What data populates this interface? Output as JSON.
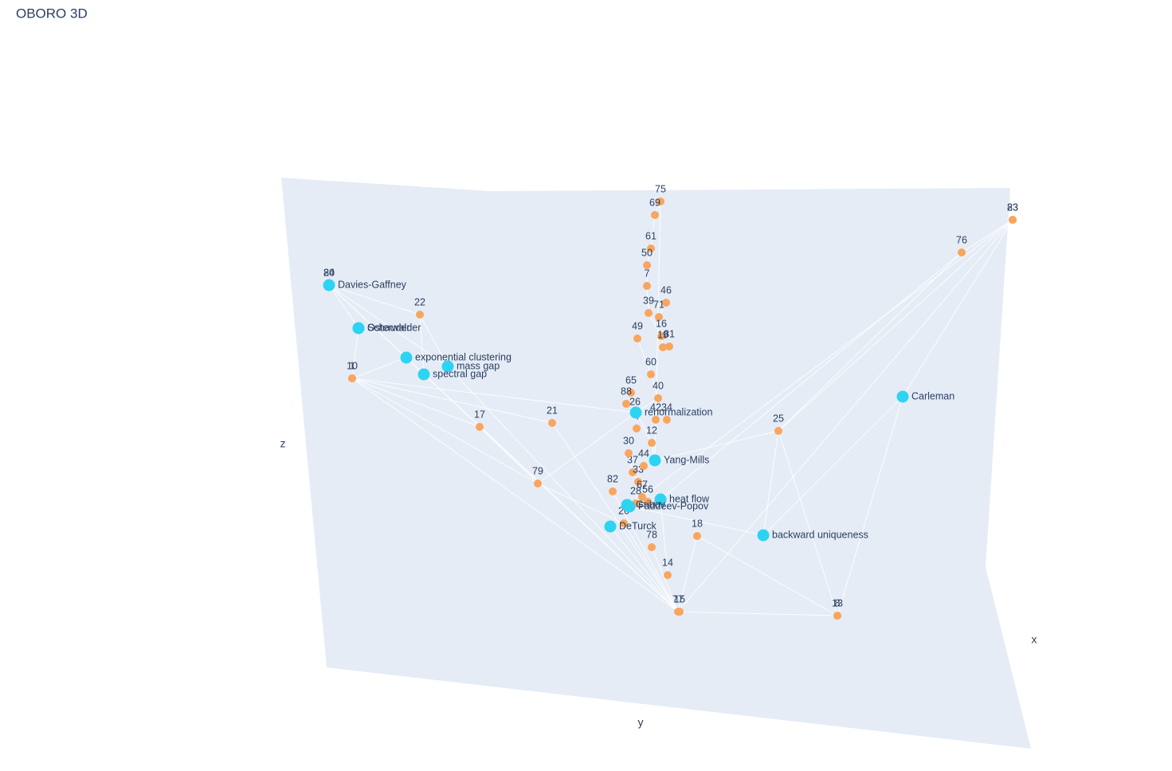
{
  "title": "OBORO 3D",
  "axes": {
    "x": "x",
    "y": "y",
    "z": "z"
  },
  "nodes": [
    {
      "label": "Davies-Gaffney"
    },
    {
      "label": "Osterwalder"
    },
    {
      "label": "Schauder"
    },
    {
      "label": "exponential clustering"
    },
    {
      "label": "mass gap"
    },
    {
      "label": "spectral gap"
    },
    {
      "label": "renormalization"
    },
    {
      "label": "Yang-Mills"
    },
    {
      "label": "heat flow"
    },
    {
      "label": "Faddeev-Popov"
    },
    {
      "label": "Gribov"
    },
    {
      "label": "DeTurck"
    },
    {
      "label": "backward uniqueness"
    },
    {
      "label": "Carleman"
    },
    {
      "label": "75"
    },
    {
      "label": "69"
    },
    {
      "label": "61"
    },
    {
      "label": "50"
    },
    {
      "label": "7"
    },
    {
      "label": "46"
    },
    {
      "label": "39"
    },
    {
      "label": "71"
    },
    {
      "label": "16"
    },
    {
      "label": "81"
    },
    {
      "label": "19"
    },
    {
      "label": "22"
    },
    {
      "label": "80"
    },
    {
      "label": "24"
    },
    {
      "label": "10"
    },
    {
      "label": "1"
    },
    {
      "label": "17"
    },
    {
      "label": "21"
    },
    {
      "label": "79"
    },
    {
      "label": "82"
    },
    {
      "label": "25"
    },
    {
      "label": "76"
    },
    {
      "label": "83"
    },
    {
      "label": "23"
    },
    {
      "label": "18"
    },
    {
      "label": "78"
    },
    {
      "label": "14"
    },
    {
      "label": "77"
    },
    {
      "label": "15"
    },
    {
      "label": "13"
    },
    {
      "label": "8"
    },
    {
      "label": "20"
    },
    {
      "label": "28"
    },
    {
      "label": "37"
    },
    {
      "label": "33"
    },
    {
      "label": "30"
    },
    {
      "label": "44"
    },
    {
      "label": "42"
    },
    {
      "label": "34"
    },
    {
      "label": "12"
    },
    {
      "label": "56"
    },
    {
      "label": "67"
    },
    {
      "label": "26"
    },
    {
      "label": "4"
    },
    {
      "label": "60"
    },
    {
      "label": "65"
    },
    {
      "label": "88"
    },
    {
      "label": "49"
    },
    {
      "label": "40"
    }
  ]
}
